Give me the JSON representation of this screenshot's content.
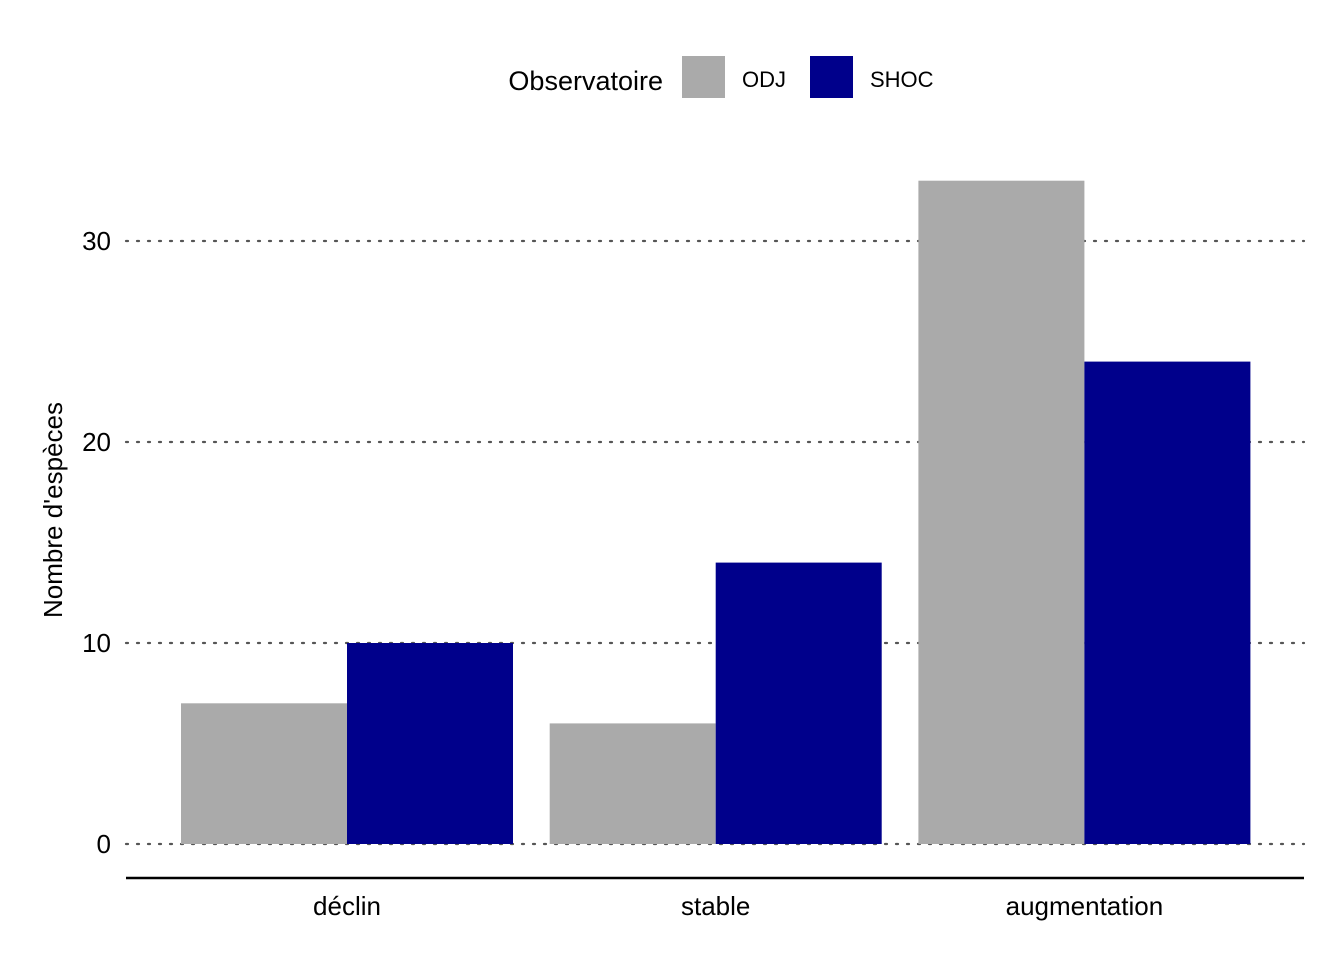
{
  "chart_data": {
    "type": "bar",
    "categories": [
      "déclin",
      "stable",
      "augmentation"
    ],
    "series": [
      {
        "name": "ODJ",
        "values": [
          7,
          6,
          33
        ],
        "color": "#aaaaaa"
      },
      {
        "name": "SHOC",
        "values": [
          10,
          14,
          24
        ],
        "color": "#00008b"
      }
    ],
    "ylabel": "Nombre d'espèces",
    "xlabel": "",
    "ylim": [
      0,
      33
    ],
    "yticks": [
      0,
      10,
      20,
      30
    ],
    "grid": "horizontal dotted",
    "legend": {
      "title": "Observatoire",
      "position": "top"
    }
  }
}
